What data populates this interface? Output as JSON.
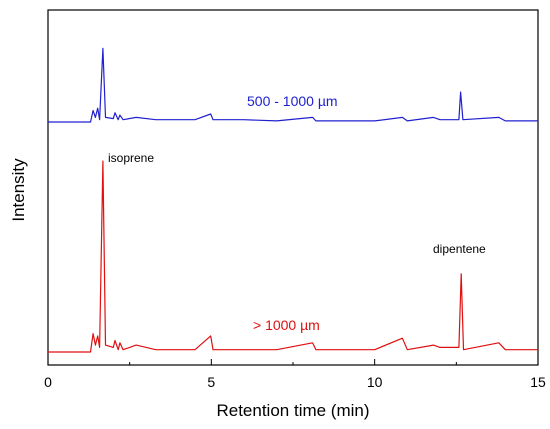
{
  "chart_data": {
    "type": "line",
    "xlabel": "Retention time (min)",
    "ylabel": "Intensity",
    "xlim": [
      0,
      15
    ],
    "x_ticks": [
      "0",
      "5",
      "10",
      "15"
    ],
    "y_ticks_labeled": false,
    "grid": false,
    "series": [
      {
        "name": "500 - 1000 µm",
        "color": "#2020d0",
        "baseline_offset": 1.0,
        "points": [
          [
            0,
            0
          ],
          [
            1.3,
            0
          ],
          [
            1.38,
            0.05
          ],
          [
            1.45,
            0.02
          ],
          [
            1.52,
            0.06
          ],
          [
            1.58,
            0.01
          ],
          [
            1.68,
            0.32
          ],
          [
            1.76,
            0.02
          ],
          [
            2.0,
            0.015
          ],
          [
            2.05,
            0.04
          ],
          [
            2.15,
            0.01
          ],
          [
            2.2,
            0.03
          ],
          [
            2.3,
            0.01
          ],
          [
            2.7,
            0.02
          ],
          [
            3.3,
            0.01
          ],
          [
            4.5,
            0.01
          ],
          [
            4.98,
            0.035
          ],
          [
            5.05,
            0.01
          ],
          [
            6.0,
            0.01
          ],
          [
            7.0,
            0.005
          ],
          [
            8.1,
            0.02
          ],
          [
            8.2,
            0.005
          ],
          [
            9.0,
            0.005
          ],
          [
            10.0,
            0.005
          ],
          [
            10.85,
            0.02
          ],
          [
            11.0,
            0.005
          ],
          [
            11.8,
            0.02
          ],
          [
            12.0,
            0.01
          ],
          [
            12.58,
            0.01
          ],
          [
            12.63,
            0.13
          ],
          [
            12.7,
            0.01
          ],
          [
            13.8,
            0.02
          ],
          [
            14.0,
            0.005
          ],
          [
            15,
            0.005
          ]
        ]
      },
      {
        "name": "> 1000 µm",
        "color": "#e01010",
        "baseline_offset": 0.0,
        "points": [
          [
            0,
            0
          ],
          [
            1.3,
            0
          ],
          [
            1.38,
            0.08
          ],
          [
            1.45,
            0.03
          ],
          [
            1.52,
            0.07
          ],
          [
            1.58,
            0.02
          ],
          [
            1.68,
            0.83
          ],
          [
            1.76,
            0.03
          ],
          [
            2.0,
            0.02
          ],
          [
            2.05,
            0.05
          ],
          [
            2.15,
            0.01
          ],
          [
            2.2,
            0.04
          ],
          [
            2.3,
            0.01
          ],
          [
            2.7,
            0.03
          ],
          [
            3.3,
            0.01
          ],
          [
            4.5,
            0.01
          ],
          [
            4.98,
            0.07
          ],
          [
            5.05,
            0.01
          ],
          [
            6.0,
            0.01
          ],
          [
            7.0,
            0.01
          ],
          [
            8.1,
            0.04
          ],
          [
            8.2,
            0.01
          ],
          [
            9.0,
            0.01
          ],
          [
            10.0,
            0.01
          ],
          [
            10.85,
            0.06
          ],
          [
            11.0,
            0.01
          ],
          [
            11.8,
            0.03
          ],
          [
            12.0,
            0.02
          ],
          [
            12.58,
            0.02
          ],
          [
            12.65,
            0.34
          ],
          [
            12.72,
            0.01
          ],
          [
            13.8,
            0.04
          ],
          [
            14.0,
            0.01
          ],
          [
            15,
            0.01
          ]
        ]
      }
    ],
    "annotations": [
      {
        "text": "isoprene",
        "x": 1.8,
        "y": 0.77
      },
      {
        "text": "dipentene",
        "x": 11.7,
        "y": 0.41
      }
    ]
  }
}
